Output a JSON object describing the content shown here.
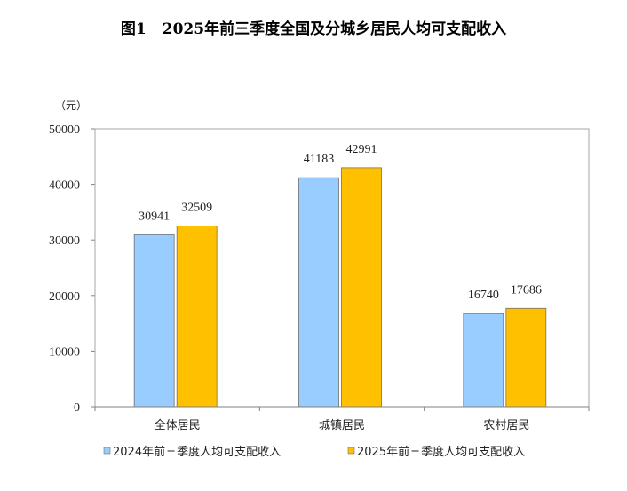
{
  "title": {
    "figure_label": "图1",
    "text": "2025年前三季度全国及分城乡居民人均可支配收入"
  },
  "colors": {
    "series_2024": "#99ccff",
    "series_2025": "#ffc000",
    "axis": "#808080",
    "frame": "#a6a6a6"
  },
  "chart_data": {
    "type": "bar",
    "title": "2025年前三季度全国及分城乡居民人均可支配收入",
    "unit_label": "（元）",
    "categories": [
      "全体居民",
      "城镇居民",
      "农村居民"
    ],
    "series": [
      {
        "name": "2024年前三季度人均可支配收入",
        "values": [
          30941,
          41183,
          16740
        ]
      },
      {
        "name": "2025年前三季度人均可支配收入",
        "values": [
          32509,
          42991,
          17686
        ]
      }
    ],
    "ylim": [
      0,
      50000
    ],
    "yticks": [
      0,
      10000,
      20000,
      30000,
      40000,
      50000
    ],
    "grid": false,
    "legend": "bottom"
  }
}
